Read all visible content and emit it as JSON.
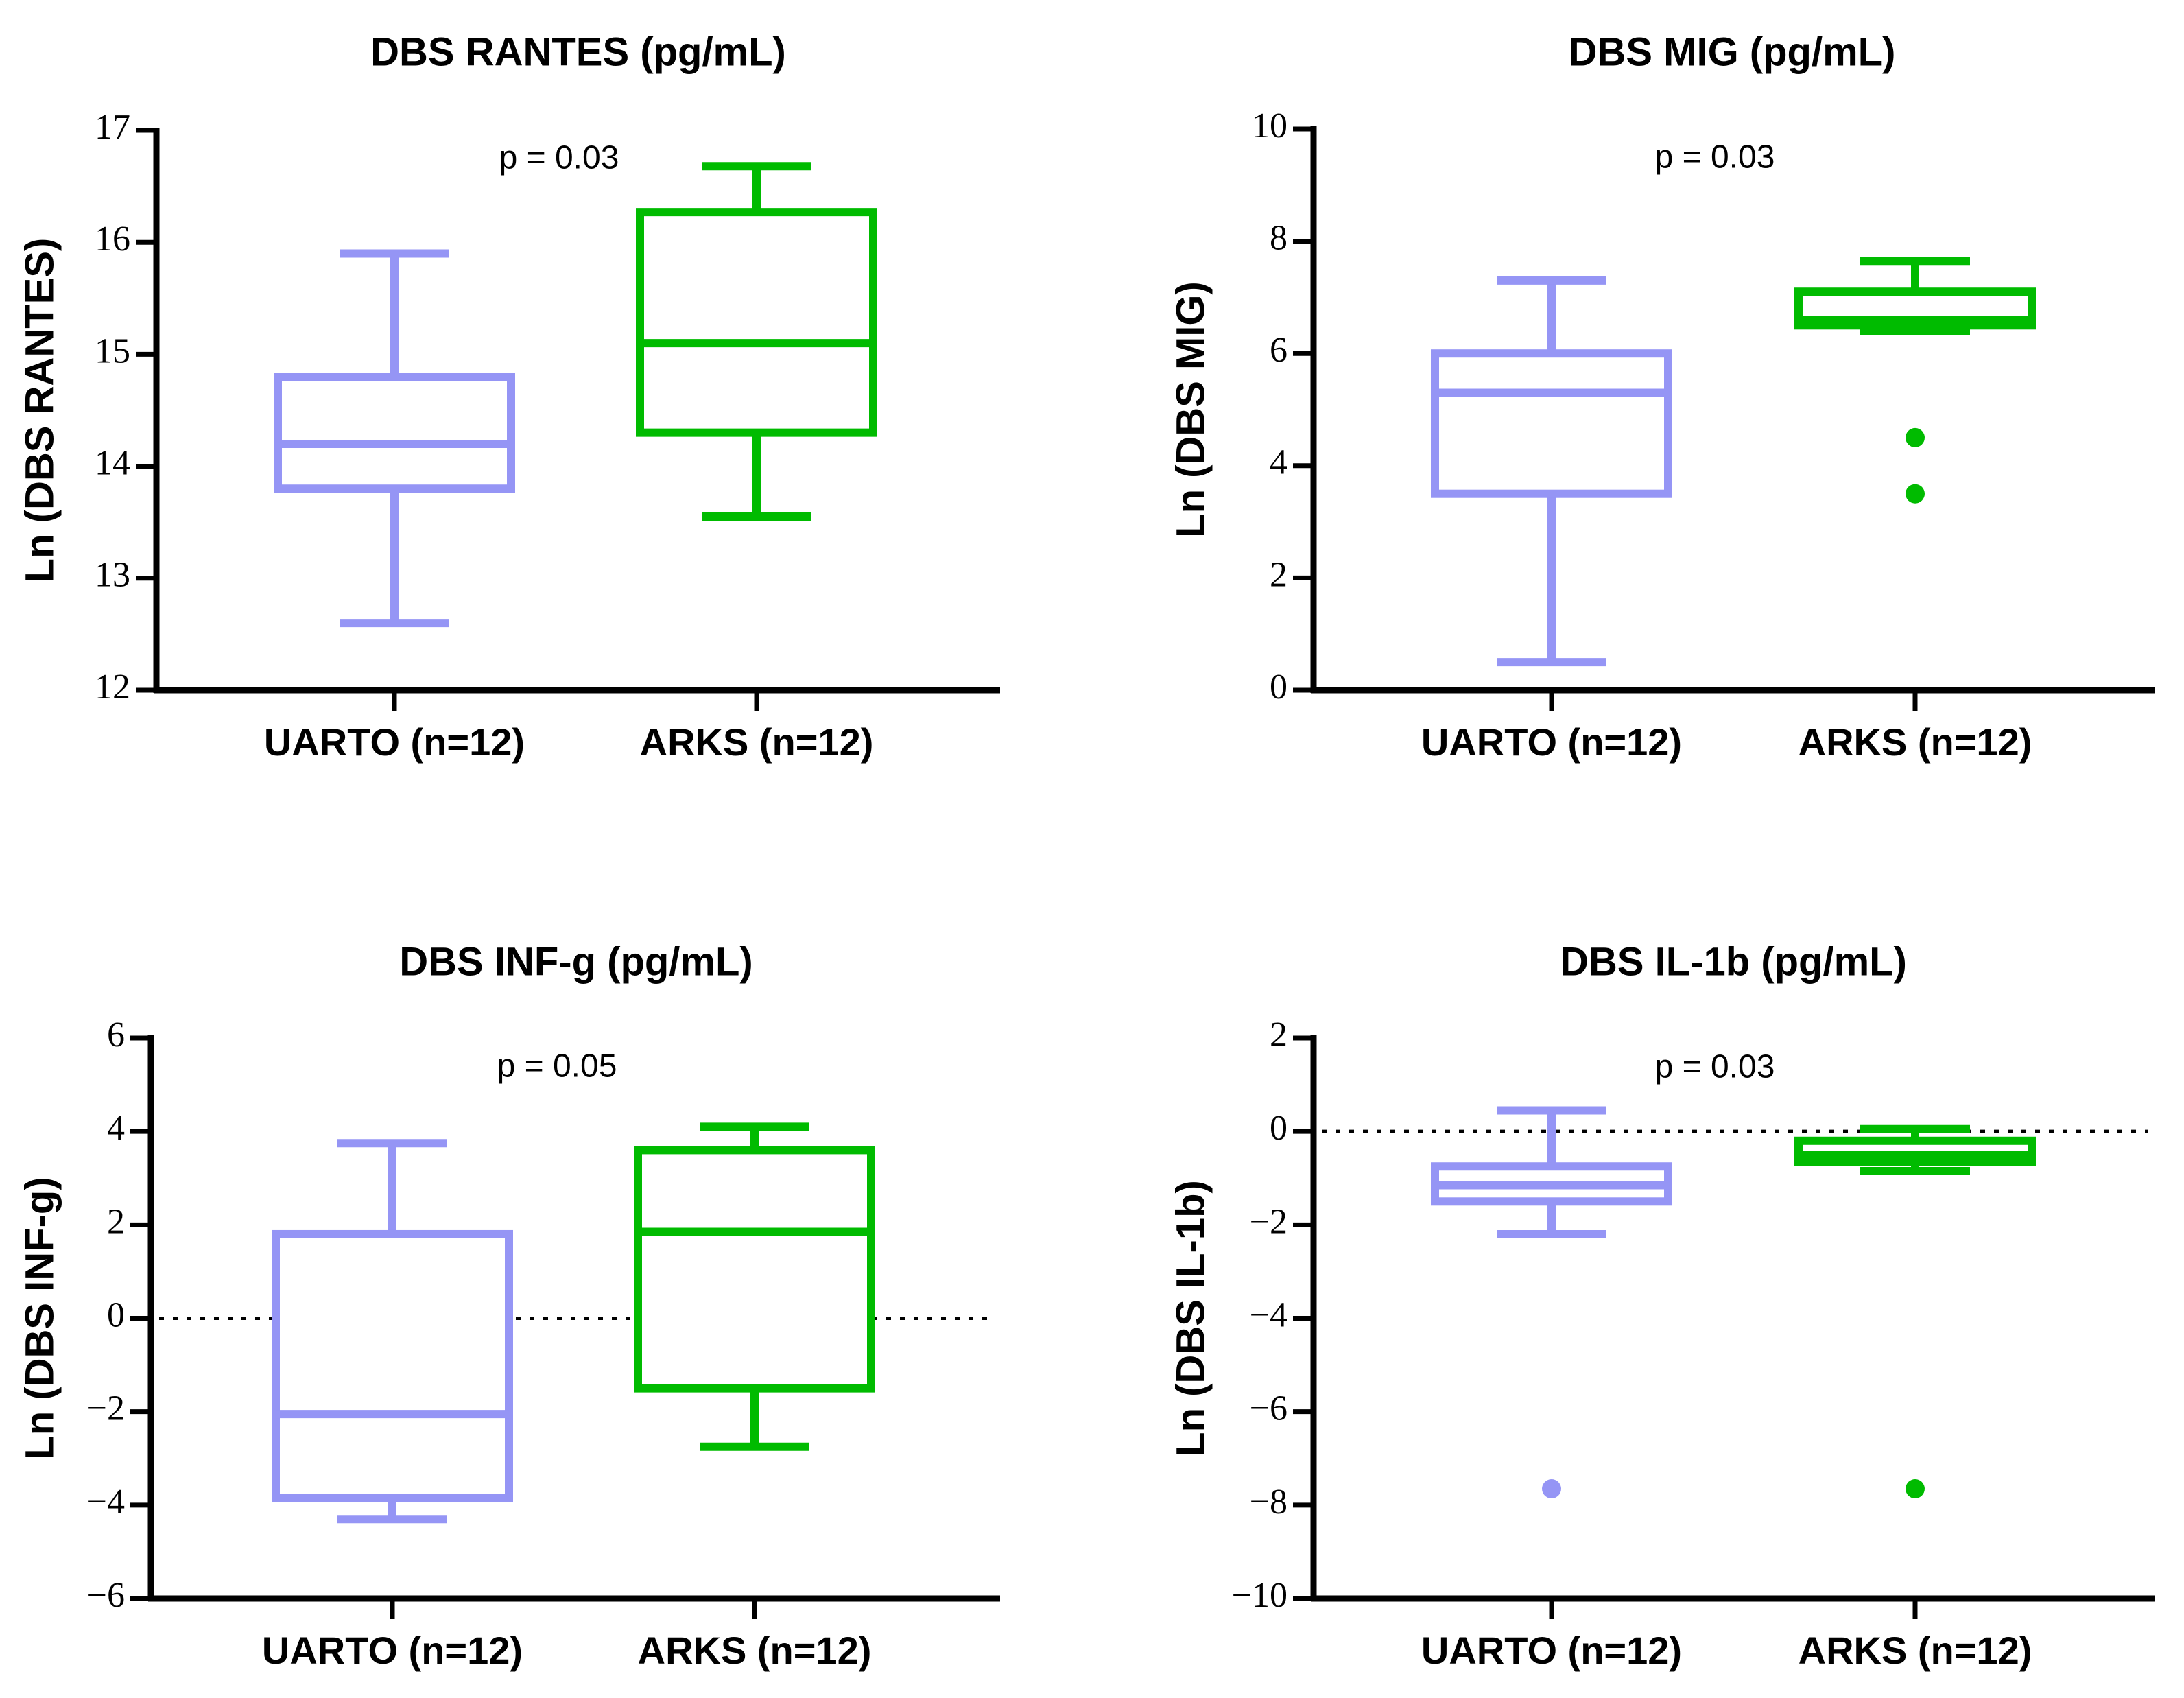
{
  "chart_data": [
    {
      "type": "box",
      "title": "DBS RANTES (pg/mL)",
      "ylabel": "Ln (DBS RANTES)",
      "ylim": [
        12,
        17
      ],
      "yticks": [
        12,
        13,
        14,
        15,
        16,
        17
      ],
      "ytick_labels": [
        "12",
        "13",
        "14",
        "15",
        "16",
        "17"
      ],
      "annotation": "p = 0.03",
      "reference_line": null,
      "categories": [
        "UARTO (n=12)",
        "ARKS (n=12)"
      ],
      "series": [
        {
          "name": "UARTO (n=12)",
          "color": "#9595F5",
          "min": 12.6,
          "q1": 13.8,
          "median": 14.2,
          "q3": 14.8,
          "max": 15.9,
          "outliers": []
        },
        {
          "name": "ARKS (n=12)",
          "color": "#00BB00",
          "min": 13.55,
          "q1": 14.3,
          "median": 15.1,
          "q3": 16.27,
          "max": 16.68,
          "outliers": []
        }
      ]
    },
    {
      "type": "box",
      "title": "DBS MIG (pg/mL)",
      "ylabel": "Ln (DBS MIG)",
      "ylim": [
        0,
        10
      ],
      "yticks": [
        0,
        2,
        4,
        6,
        8,
        10
      ],
      "ytick_labels": [
        "0",
        "2",
        "4",
        "6",
        "8",
        "10"
      ],
      "annotation": "p = 0.03",
      "reference_line": null,
      "categories": [
        "UARTO (n=12)",
        "ARKS (n=12)"
      ],
      "series": [
        {
          "name": "UARTO (n=12)",
          "color": "#9595F5",
          "min": 0.5,
          "q1": 3.5,
          "median": 5.3,
          "q3": 6.0,
          "max": 7.3,
          "outliers": []
        },
        {
          "name": "ARKS (n=12)",
          "color": "#00BB00",
          "min": 6.4,
          "q1": 6.5,
          "median": 6.6,
          "q3": 7.1,
          "max": 7.65,
          "outliers": [
            4.5,
            3.5
          ]
        }
      ]
    },
    {
      "type": "box",
      "title": "DBS INF-g (pg/mL)",
      "ylabel": "Ln (DBS INF-g)",
      "ylim": [
        -6,
        6
      ],
      "yticks": [
        -6,
        -4,
        -2,
        0,
        2,
        4,
        6
      ],
      "ytick_labels": [
        "−6",
        "−4",
        "−2",
        "0",
        "2",
        "4",
        "6"
      ],
      "annotation": "p = 0.05",
      "reference_line": 0,
      "categories": [
        "UARTO (n=12)",
        "ARKS (n=12)"
      ],
      "series": [
        {
          "name": "UARTO (n=12)",
          "color": "#9595F5",
          "min": -4.3,
          "q1": -3.85,
          "median": -2.05,
          "q3": 1.8,
          "max": 3.75,
          "outliers": []
        },
        {
          "name": "ARKS (n=12)",
          "color": "#00BB00",
          "min": -2.75,
          "q1": -1.5,
          "median": 1.85,
          "q3": 3.6,
          "max": 4.1,
          "outliers": []
        }
      ]
    },
    {
      "type": "box",
      "title": "DBS IL-1b (pg/mL)",
      "ylabel": "Ln (DBS IL-1b)",
      "ylim": [
        -10,
        2
      ],
      "yticks": [
        -10,
        -8,
        -6,
        -4,
        -2,
        0,
        2
      ],
      "ytick_labels": [
        "−10",
        "−8",
        "−6",
        "−4",
        "−2",
        "0",
        "2"
      ],
      "annotation": "p = 0.03",
      "reference_line": 0,
      "categories": [
        "UARTO (n=12)",
        "ARKS (n=12)"
      ],
      "series": [
        {
          "name": "UARTO (n=12)",
          "color": "#9595F5",
          "min": -2.2,
          "q1": -1.5,
          "median": -1.15,
          "q3": -0.75,
          "max": 0.45,
          "outliers": [
            -7.65
          ]
        },
        {
          "name": "ARKS (n=12)",
          "color": "#00BB00",
          "min": -0.85,
          "q1": -0.65,
          "median": -0.5,
          "q3": -0.2,
          "max": 0.05,
          "outliers": [
            -7.65
          ]
        }
      ]
    }
  ]
}
